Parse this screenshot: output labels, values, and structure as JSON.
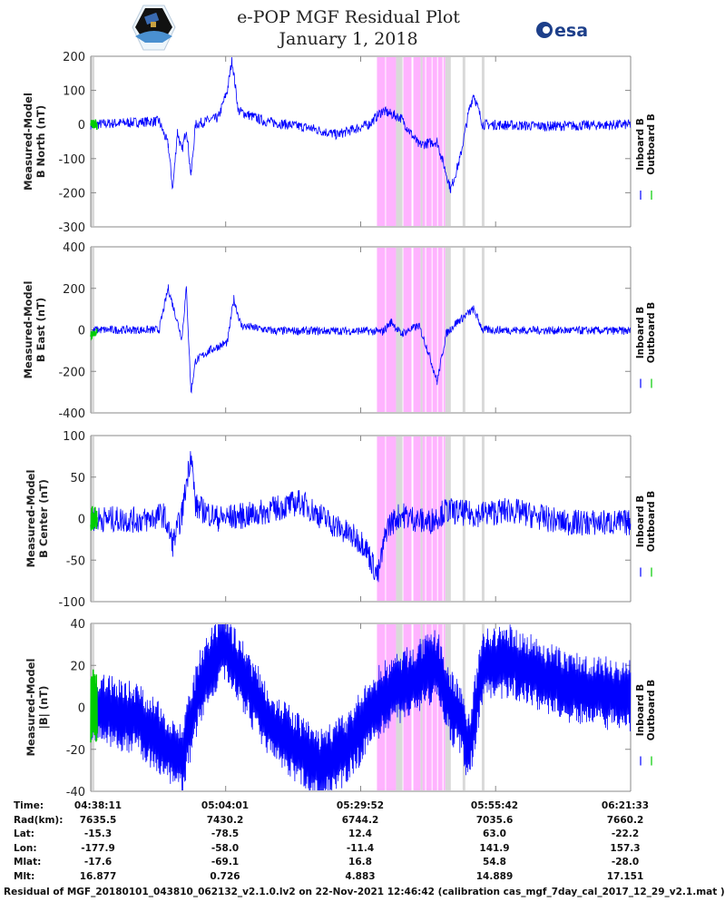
{
  "header": {
    "title": "e-POP MGF Residual Plot",
    "subtitle": "January 1, 2018",
    "esa_logo_text": "esa"
  },
  "colors": {
    "inboard": "#0000ff",
    "outboard": "#00cc00",
    "storm_shade": "#ffb3ff",
    "gap_shade": "#d9d9d9",
    "axis": "#888888"
  },
  "chart_data": [
    {
      "type": "line",
      "ylabel": [
        "Measured-Model",
        "B North (nT)"
      ],
      "ylim": [
        -300,
        200
      ],
      "yticks": [
        200,
        100,
        0,
        -100,
        -200,
        -300
      ],
      "legend": [
        "Inboard B",
        "Outboard B"
      ],
      "legend_placement": "right",
      "series": [
        {
          "name": "Inboard B",
          "points": [
            [
              "04:38:11",
              0
            ],
            [
              "04:51:16",
              10
            ],
            [
              "04:53:01",
              -60
            ],
            [
              "04:53:53",
              -190
            ],
            [
              "04:54:46",
              -20
            ],
            [
              "04:55:38",
              -80
            ],
            [
              "04:56:30",
              -10
            ],
            [
              "04:57:23",
              -150
            ],
            [
              "04:58:15",
              0
            ],
            [
              "05:02:37",
              20
            ],
            [
              "05:04:21",
              100
            ],
            [
              "05:05:14",
              190
            ],
            [
              "05:06:27",
              40
            ],
            [
              "05:11:20",
              10
            ],
            [
              "05:20:04",
              -10
            ],
            [
              "05:25:18",
              -30
            ],
            [
              "05:31:25",
              0
            ],
            [
              "05:34:02",
              40
            ],
            [
              "05:37:31",
              20
            ],
            [
              "05:41:00",
              -60
            ],
            [
              "05:44:30",
              -50
            ],
            [
              "05:47:07",
              -190
            ],
            [
              "05:48:52",
              -100
            ],
            [
              "05:50:36",
              40
            ],
            [
              "05:51:29",
              90
            ],
            [
              "05:53:14",
              0
            ],
            [
              "06:05:26",
              -5
            ],
            [
              "06:21:33",
              0
            ]
          ]
        },
        {
          "name": "Outboard B",
          "points": [
            [
              "04:38:11",
              0
            ],
            [
              "04:39:03",
              5
            ],
            [
              "04:39:25",
              -2
            ]
          ]
        }
      ]
    },
    {
      "type": "line",
      "ylabel": [
        "Measured-Model",
        "B East (nT)"
      ],
      "ylim": [
        -400,
        400
      ],
      "yticks": [
        400,
        200,
        0,
        -200,
        -400
      ],
      "legend": [
        "Inboard B",
        "Outboard B"
      ],
      "legend_placement": "right",
      "series": [
        {
          "name": "Inboard B",
          "points": [
            [
              "04:38:11",
              -20
            ],
            [
              "04:39:03",
              0
            ],
            [
              "04:51:16",
              0
            ],
            [
              "04:53:01",
              200
            ],
            [
              "04:53:53",
              120
            ],
            [
              "04:55:38",
              -40
            ],
            [
              "04:56:30",
              200
            ],
            [
              "04:57:23",
              -300
            ],
            [
              "04:58:15",
              -150
            ],
            [
              "05:00:52",
              -100
            ],
            [
              "05:04:21",
              -60
            ],
            [
              "05:05:35",
              150
            ],
            [
              "05:06:58",
              20
            ],
            [
              "05:13:05",
              -5
            ],
            [
              "05:30:32",
              -5
            ],
            [
              "05:34:02",
              -10
            ],
            [
              "05:35:47",
              40
            ],
            [
              "05:37:31",
              -20
            ],
            [
              "05:41:00",
              20
            ],
            [
              "05:42:45",
              -100
            ],
            [
              "05:44:30",
              -250
            ],
            [
              "05:46:14",
              -20
            ],
            [
              "05:47:59",
              30
            ],
            [
              "05:51:29",
              100
            ],
            [
              "05:53:14",
              0
            ],
            [
              "06:21:33",
              -5
            ]
          ]
        },
        {
          "name": "Outboard B",
          "points": [
            [
              "04:38:11",
              -25
            ],
            [
              "04:39:03",
              -10
            ],
            [
              "04:39:25",
              -15
            ]
          ]
        }
      ]
    },
    {
      "type": "line",
      "ylabel": [
        "Measured-Model",
        "B Center (nT)"
      ],
      "ylim": [
        -100,
        100
      ],
      "yticks": [
        100,
        50,
        0,
        -50,
        -100
      ],
      "legend": [
        "Inboard B",
        "Outboard B"
      ],
      "legend_placement": "right",
      "series": [
        {
          "name": "Inboard B",
          "points": [
            [
              "04:38:11",
              0
            ],
            [
              "04:48:39",
              -2
            ],
            [
              "04:52:09",
              5
            ],
            [
              "04:53:53",
              -30
            ],
            [
              "04:55:38",
              5
            ],
            [
              "04:57:23",
              80
            ],
            [
              "04:58:15",
              15
            ],
            [
              "05:02:37",
              0
            ],
            [
              "05:09:35",
              5
            ],
            [
              "05:18:19",
              20
            ],
            [
              "05:25:18",
              -10
            ],
            [
              "05:30:32",
              -30
            ],
            [
              "05:33:10",
              -70
            ],
            [
              "05:34:54",
              -10
            ],
            [
              "05:37:31",
              5
            ],
            [
              "05:42:45",
              -5
            ],
            [
              "05:46:14",
              10
            ],
            [
              "05:51:29",
              5
            ],
            [
              "05:58:28",
              10
            ],
            [
              "06:08:56",
              -5
            ],
            [
              "06:21:33",
              -5
            ]
          ]
        },
        {
          "name": "Outboard B",
          "points": [
            [
              "04:38:11",
              0
            ],
            [
              "04:39:03",
              3
            ],
            [
              "04:39:25",
              -2
            ]
          ]
        }
      ]
    },
    {
      "type": "line",
      "ylabel": [
        "Measured-Model",
        "|B| (nT)"
      ],
      "ylim": [
        -40,
        40
      ],
      "yticks": [
        40,
        20,
        0,
        -20,
        -40
      ],
      "legend": [
        "Inboard B",
        "Outboard B"
      ],
      "legend_placement": "right",
      "series": [
        {
          "name": "Inboard B",
          "points": [
            [
              "04:38:11",
              0
            ],
            [
              "04:46:55",
              -5
            ],
            [
              "04:55:38",
              -25
            ],
            [
              "04:59:07",
              10
            ],
            [
              "05:03:29",
              30
            ],
            [
              "05:06:06",
              20
            ],
            [
              "05:13:05",
              -10
            ],
            [
              "05:21:49",
              -28
            ],
            [
              "05:27:03",
              -20
            ],
            [
              "05:34:02",
              5
            ],
            [
              "05:39:16",
              12
            ],
            [
              "05:44:30",
              20
            ],
            [
              "05:47:07",
              0
            ],
            [
              "05:48:52",
              -5
            ],
            [
              "05:50:36",
              -20
            ],
            [
              "05:53:14",
              20
            ],
            [
              "05:58:28",
              22
            ],
            [
              "06:08:56",
              10
            ],
            [
              "06:21:33",
              5
            ]
          ]
        },
        {
          "name": "Outboard B",
          "points": [
            [
              "04:38:11",
              0
            ],
            [
              "04:39:03",
              2
            ],
            [
              "04:39:25",
              0
            ]
          ]
        }
      ]
    }
  ],
  "shading": {
    "gap": [
      [
        "04:38:11",
        "04:38:53"
      ],
      [
        "05:36:38",
        "05:37:52"
      ],
      [
        "05:41:21",
        "05:41:42"
      ],
      [
        "05:46:04",
        "05:47:07"
      ],
      [
        "05:49:23",
        "05:49:54"
      ],
      [
        "05:53:03",
        "05:53:34"
      ]
    ],
    "storm": [
      [
        "05:32:59",
        "05:34:33"
      ],
      [
        "05:34:43",
        "05:36:38"
      ],
      [
        "05:38:02",
        "05:39:36"
      ],
      [
        "05:39:57",
        "05:41:21"
      ],
      [
        "05:41:42",
        "05:42:13"
      ],
      [
        "05:42:24",
        "05:43:27"
      ],
      [
        "05:43:37",
        "05:44:30"
      ],
      [
        "05:44:40",
        "05:45:32"
      ],
      [
        "05:45:43",
        "05:46:04"
      ]
    ]
  },
  "xaxis": {
    "range": [
      "04:38:11",
      "06:21:33"
    ],
    "ticks": [
      "04:38:11",
      "05:04:01",
      "05:29:52",
      "05:55:42",
      "06:21:33"
    ]
  },
  "ephemeris": {
    "rows": [
      {
        "label": "Time:",
        "values": [
          "04:38:11",
          "05:04:01",
          "05:29:52",
          "05:55:42",
          "06:21:33"
        ]
      },
      {
        "label": "Rad(km):",
        "values": [
          "7635.5",
          "7430.2",
          "6744.2",
          "7035.6",
          "7660.2"
        ]
      },
      {
        "label": "Lat:",
        "values": [
          "-15.3",
          "-78.5",
          "12.4",
          "63.0",
          "-22.2"
        ]
      },
      {
        "label": "Lon:",
        "values": [
          "-177.9",
          "-58.0",
          "-11.4",
          "141.9",
          "157.3"
        ]
      },
      {
        "label": "Mlat:",
        "values": [
          "-17.6",
          "-69.1",
          "16.8",
          "54.8",
          "-28.0"
        ]
      },
      {
        "label": "Mlt:",
        "values": [
          "16.877",
          "0.726",
          "4.883",
          "14.889",
          "17.151"
        ]
      }
    ]
  },
  "footer": "Residual of MGF_20180101_043810_062132_v2.1.0.lv2 on 22-Nov-2021 12:46:42 (calibration cas_mgf_7day_cal_2017_12_29_v2.1.mat )"
}
